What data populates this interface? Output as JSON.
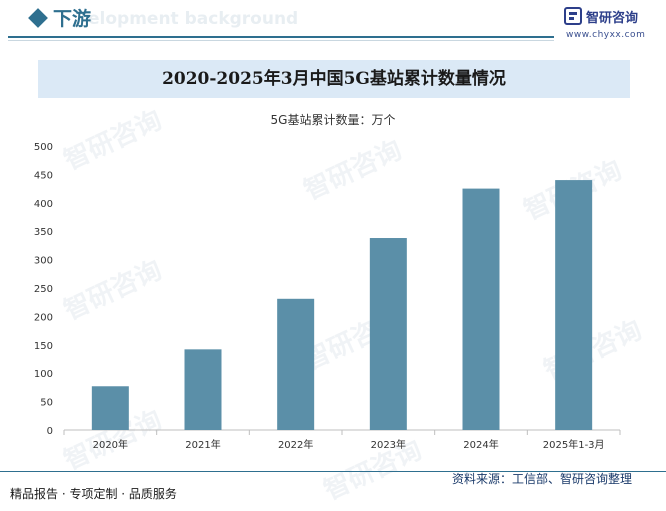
{
  "header": {
    "section_title": "下游",
    "ghost_text": "elopment background",
    "brand_name": "智研咨询",
    "brand_url": "www.chyxx.com"
  },
  "chart_data": {
    "type": "bar",
    "title": "2020-2025年3月中国5G基站累计数量情况",
    "unit_label": "5G基站累计数量：万个",
    "categories": [
      "2020年",
      "2021年",
      "2022年",
      "2023年",
      "2024年",
      "2025年1-3月"
    ],
    "series": [
      {
        "name": "5G基站累计数量",
        "values": [
          77,
          142,
          231,
          338,
          425,
          440
        ]
      }
    ],
    "ylim": [
      0,
      500
    ],
    "yticks": [
      0,
      50,
      100,
      150,
      200,
      250,
      300,
      350,
      400,
      450,
      500
    ],
    "xlabel": "",
    "ylabel": "",
    "grid": false,
    "bar_color": "#5b8fa8"
  },
  "watermark": "智研咨询",
  "footer": {
    "left_text": "精品报告 · 专项定制 · 品质服务",
    "source_text": "资料来源：工信部、智研咨询整理"
  }
}
